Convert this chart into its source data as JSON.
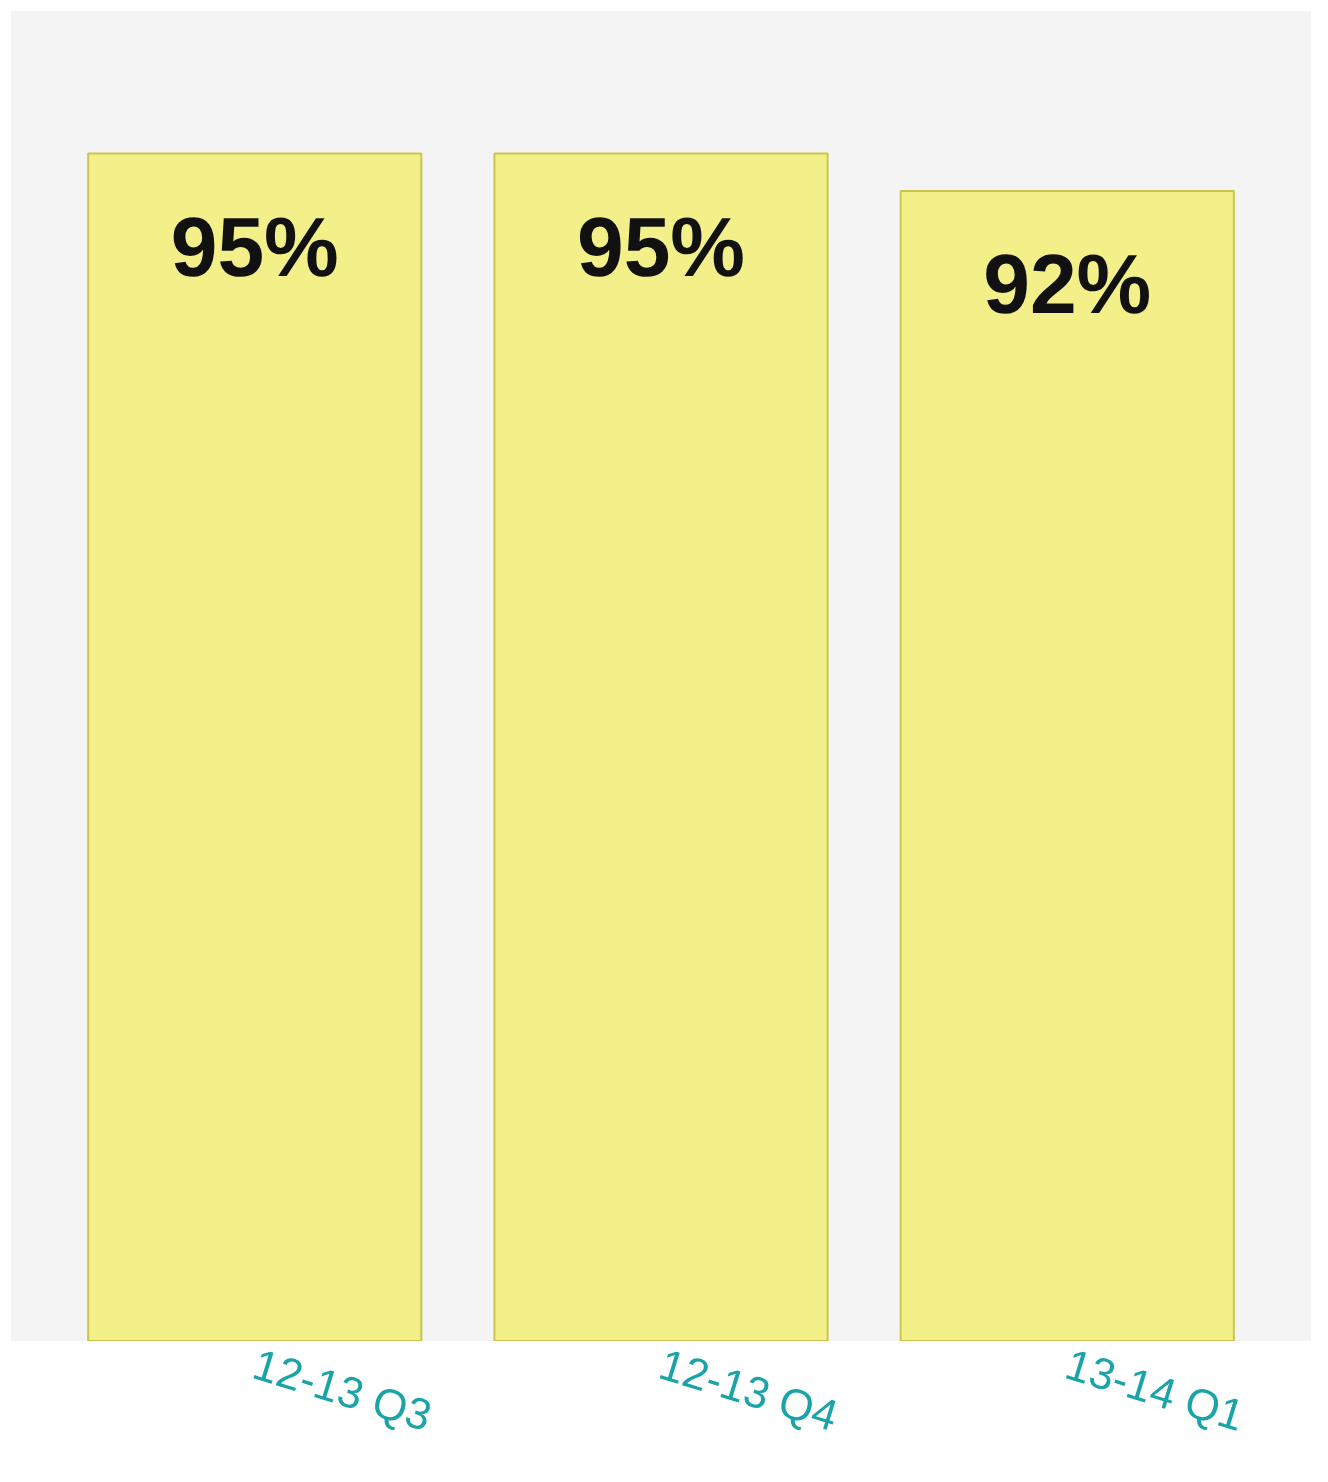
{
  "chart_data": {
    "type": "bar",
    "categories": [
      "12-13 Q3",
      "12-13 Q4",
      "13-14 Q1"
    ],
    "values": [
      95,
      95,
      92
    ],
    "value_labels": [
      "95%",
      "95%",
      "92%"
    ],
    "color": "#f3f08a",
    "tick_labels": "x"
  }
}
